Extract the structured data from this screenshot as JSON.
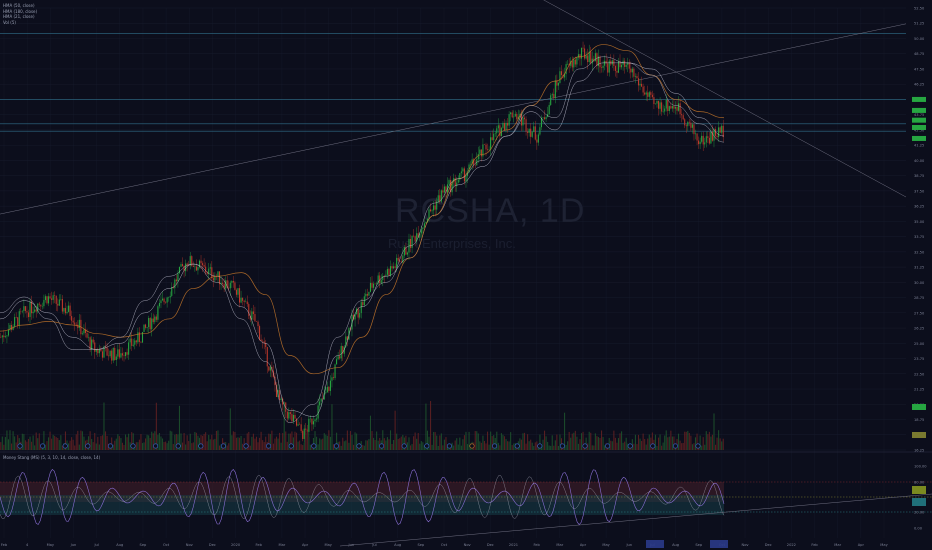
{
  "watermark": {
    "symbol": "RCSHA, 1D",
    "company": "Rush Enterprises, Inc."
  },
  "legend": {
    "lines": [
      "HMA (50, close)",
      "HMA (180, close)",
      "HMA (21, close)",
      "Vol (5)"
    ]
  },
  "oscillator": {
    "label": "Money Stang (MS) (5, 3, 10, 14, close, close, 14)"
  },
  "colors": {
    "background": "#0c0e1c",
    "up": "#26a641",
    "down": "#c0392b",
    "orange": "#c8782a",
    "white": "#c8c8d8",
    "purple": "#8a6fd6",
    "grid": "#1a1e30"
  },
  "price_labels": [
    "52.50",
    "51.25",
    "50.00",
    "48.75",
    "47.50",
    "46.25",
    "45.00",
    "43.75",
    "42.50",
    "41.25",
    "40.00",
    "38.75",
    "37.50",
    "36.25",
    "35.00",
    "33.75",
    "32.50",
    "31.25",
    "30.00",
    "28.75",
    "27.50",
    "26.25",
    "25.00",
    "23.75",
    "22.50",
    "21.25",
    "20.00",
    "18.75",
    "17.50",
    "16.25"
  ],
  "osc_labels": [
    "100.00",
    "80.00",
    "20.00",
    "0.00"
  ],
  "time_labels": [
    "Feb",
    "4",
    "May",
    "Jun",
    "Jul",
    "Aug",
    "Sep",
    "Oct",
    "Nov",
    "Dec",
    "2020",
    "Feb",
    "Mar",
    "Apr",
    "May",
    "Jun",
    "Jul",
    "Aug",
    "Sep",
    "Oct",
    "Nov",
    "Dec",
    "2021",
    "Feb",
    "Mar",
    "Apr",
    "May",
    "Jun",
    "Jul",
    "Aug",
    "Sep",
    "Oct",
    "Nov",
    "Dec",
    "2022",
    "Feb",
    "Mar",
    "Apr",
    "May"
  ],
  "chart_data": {
    "type": "candlestick",
    "series": [
      {
        "name": "HMA (50, close)",
        "values": [
          27.0,
          28.5,
          27.5,
          25.5,
          24.5,
          25.0,
          27.5,
          29.5,
          31.5,
          30.5,
          28.0,
          25.0,
          19.5,
          19.0,
          24.0,
          28.0,
          30.5,
          32.0,
          35.5,
          38.0,
          39.5,
          42.0,
          44.0,
          42.5,
          46.5,
          48.0,
          48.0,
          47.5,
          45.5,
          43.5,
          42.0
        ]
      },
      {
        "name": "HMA (180, close)",
        "values": [
          26.0,
          26.5,
          26.8,
          26.5,
          25.8,
          25.5,
          25.8,
          27.0,
          29.5,
          30.5,
          30.8,
          29.0,
          24.0,
          22.5,
          23.0,
          25.5,
          29.0,
          32.0,
          35.5,
          38.5,
          40.5,
          42.5,
          44.5,
          46.5,
          48.5,
          49.5,
          49.0,
          47.0,
          45.0,
          44.0,
          43.5
        ]
      },
      {
        "name": "HMA (21, close)",
        "values": [
          27.5,
          28.8,
          27.0,
          24.5,
          24.5,
          25.5,
          28.5,
          30.5,
          31.5,
          30.0,
          27.0,
          23.5,
          18.5,
          20.0,
          25.5,
          28.5,
          30.0,
          33.0,
          36.5,
          38.5,
          40.0,
          42.0,
          44.5,
          43.5,
          47.5,
          48.5,
          48.0,
          47.0,
          44.5,
          43.0,
          41.5
        ]
      }
    ],
    "price_path": [
      25.5,
      27.5,
      28.8,
      27.5,
      24.5,
      24.0,
      25.5,
      28.5,
      31.8,
      30.8,
      29.5,
      26.5,
      20.0,
      17.5,
      21.0,
      26.5,
      30.0,
      31.5,
      34.5,
      37.5,
      39.0,
      41.5,
      44.0,
      42.0,
      47.0,
      48.8,
      47.8,
      47.5,
      44.5,
      44.5,
      41.5,
      42.5
    ],
    "xlabel": "",
    "ylabel": "",
    "ylim": [
      16.25,
      52.5
    ]
  }
}
